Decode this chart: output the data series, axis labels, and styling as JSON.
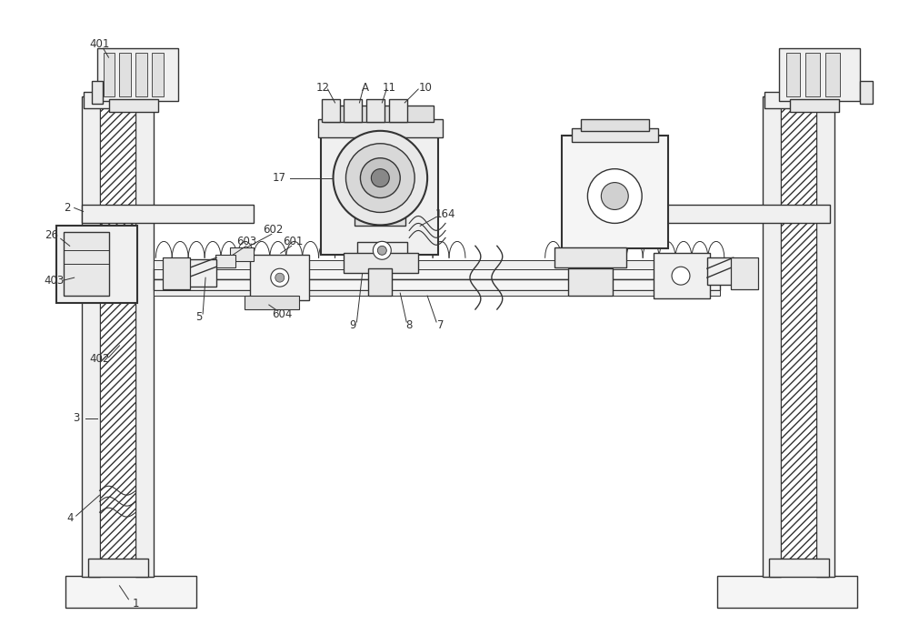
{
  "bg_color": "#ffffff",
  "line_color": "#333333",
  "fig_width": 10.0,
  "fig_height": 6.98,
  "dpi": 100
}
